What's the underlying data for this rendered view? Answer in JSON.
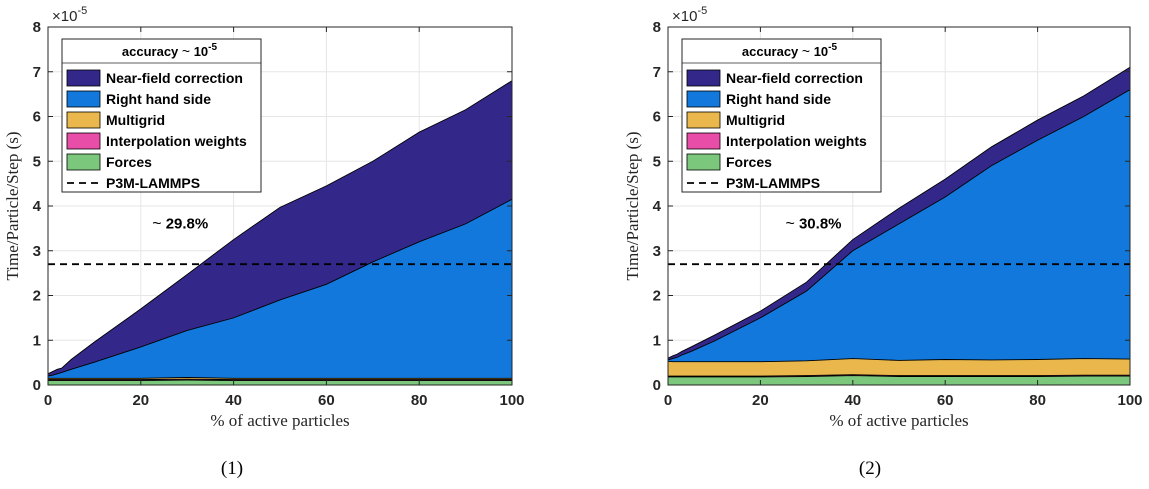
{
  "chart_data": [
    {
      "type": "area",
      "caption": "(1)",
      "xlabel": "% of active particles",
      "ylabel": "Time/Particle/Step (s)",
      "exponent_prefix": "×10",
      "exponent_power": "-5",
      "xlim": [
        0,
        100
      ],
      "ylim": [
        0,
        8
      ],
      "xticks": [
        0,
        20,
        40,
        60,
        80,
        100
      ],
      "yticks": [
        0,
        1,
        2,
        3,
        4,
        5,
        6,
        7,
        8
      ],
      "grid": true,
      "stacked": true,
      "legend_title_main": "accuracy ",
      "legend_title_sym": "~",
      "legend_title_val": " 10",
      "legend_title_sup": "-5",
      "legend_position": "top-left",
      "annotation_sym": "~",
      "annotation": " 29.8%",
      "annotation_at": [
        30,
        3.5
      ],
      "reference_line": {
        "name": "P3M-LAMMPS",
        "y": 2.7
      },
      "x": [
        0,
        1,
        2,
        3,
        5,
        10,
        20,
        30,
        40,
        50,
        60,
        70,
        80,
        90,
        100
      ],
      "series": [
        {
          "name": "Forces",
          "color": "#7bc77b",
          "values": [
            0.1,
            0.1,
            0.1,
            0.1,
            0.1,
            0.1,
            0.1,
            0.11,
            0.1,
            0.1,
            0.1,
            0.1,
            0.1,
            0.1,
            0.1
          ]
        },
        {
          "name": "Interpolation weights",
          "color": "#e84da8",
          "values": [
            0.02,
            0.02,
            0.02,
            0.02,
            0.02,
            0.02,
            0.02,
            0.02,
            0.02,
            0.02,
            0.02,
            0.02,
            0.02,
            0.02,
            0.02
          ]
        },
        {
          "name": "Multigrid",
          "color": "#e9b74b",
          "values": [
            0.03,
            0.03,
            0.03,
            0.03,
            0.03,
            0.03,
            0.03,
            0.04,
            0.03,
            0.03,
            0.03,
            0.03,
            0.03,
            0.03,
            0.03
          ]
        },
        {
          "name": "Right hand side",
          "color": "#1278db",
          "values": [
            0.05,
            0.07,
            0.1,
            0.13,
            0.2,
            0.36,
            0.7,
            1.05,
            1.35,
            1.75,
            2.1,
            2.6,
            3.05,
            3.45,
            4.0
          ]
        },
        {
          "name": "Near-field correction",
          "color": "#33288a",
          "values": [
            0.05,
            0.08,
            0.1,
            0.1,
            0.22,
            0.45,
            0.85,
            1.25,
            1.75,
            2.07,
            2.2,
            2.25,
            2.45,
            2.55,
            2.65
          ]
        }
      ]
    },
    {
      "type": "area",
      "caption": "(2)",
      "xlabel": "% of active particles",
      "ylabel": "Time/Particle/Step (s)",
      "exponent_prefix": "×10",
      "exponent_power": "-5",
      "xlim": [
        0,
        100
      ],
      "ylim": [
        0,
        8
      ],
      "xticks": [
        0,
        20,
        40,
        60,
        80,
        100
      ],
      "yticks": [
        0,
        1,
        2,
        3,
        4,
        5,
        6,
        7,
        8
      ],
      "grid": true,
      "stacked": true,
      "legend_title_main": "accuracy ",
      "legend_title_sym": "~",
      "legend_title_val": " 10",
      "legend_title_sup": "-5",
      "legend_position": "top-left",
      "annotation_sym": "~",
      "annotation": " 30.8%",
      "annotation_at": [
        33,
        3.5
      ],
      "reference_line": {
        "name": "P3M-LAMMPS",
        "y": 2.7
      },
      "x": [
        0,
        1,
        2,
        3,
        5,
        10,
        20,
        30,
        40,
        50,
        60,
        70,
        80,
        90,
        100
      ],
      "series": [
        {
          "name": "Forces",
          "color": "#7bc77b",
          "values": [
            0.18,
            0.18,
            0.18,
            0.18,
            0.18,
            0.18,
            0.18,
            0.19,
            0.21,
            0.19,
            0.19,
            0.19,
            0.19,
            0.2,
            0.2
          ]
        },
        {
          "name": "Interpolation weights",
          "color": "#e84da8",
          "values": [
            0.02,
            0.02,
            0.02,
            0.02,
            0.02,
            0.02,
            0.02,
            0.02,
            0.02,
            0.02,
            0.02,
            0.02,
            0.02,
            0.02,
            0.02
          ]
        },
        {
          "name": "Multigrid",
          "color": "#e9b74b",
          "values": [
            0.33,
            0.32,
            0.32,
            0.32,
            0.32,
            0.32,
            0.32,
            0.33,
            0.36,
            0.34,
            0.36,
            0.35,
            0.36,
            0.37,
            0.36
          ]
        },
        {
          "name": "Right hand side",
          "color": "#1278db",
          "values": [
            0.03,
            0.07,
            0.1,
            0.15,
            0.23,
            0.46,
            0.98,
            1.56,
            2.41,
            3.05,
            3.63,
            4.34,
            4.9,
            5.41,
            6.02
          ]
        },
        {
          "name": "Near-field correction",
          "color": "#33288a",
          "values": [
            0.04,
            0.06,
            0.07,
            0.08,
            0.1,
            0.13,
            0.15,
            0.2,
            0.25,
            0.35,
            0.4,
            0.42,
            0.45,
            0.46,
            0.5
          ]
        }
      ]
    }
  ]
}
